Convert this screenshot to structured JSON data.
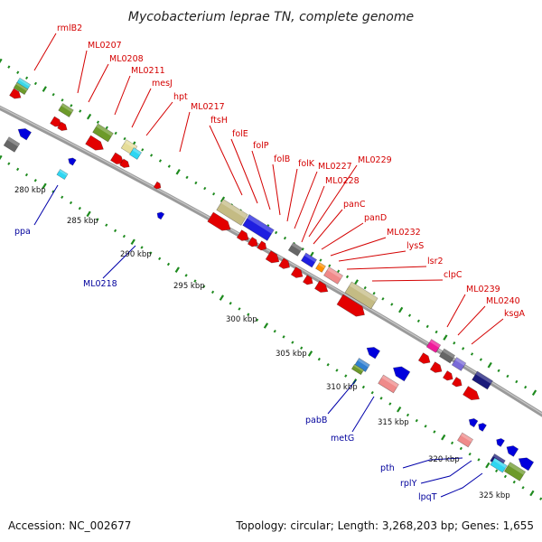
{
  "title": "Mycobacterium leprae TN, complete genome",
  "footer": {
    "accession": "Accession: NC_002677",
    "summary": "Topology: circular; Length: 3,268,203 bp; Genes: 1,655"
  },
  "colors": {
    "backbone": "#8a8a8a",
    "ticks": "#1e8a1e",
    "forward_label": "#d40000",
    "reverse_label": "#00009c"
  },
  "kbp_labels": [
    "280 kbp",
    "285 kbp",
    "290 kbp",
    "295 kbp",
    "300 kbp",
    "305 kbp",
    "310 kbp",
    "315 kbp",
    "320 kbp",
    "325 kbp"
  ],
  "forward_genes": [
    "rmlB2",
    "ML0207",
    "ML0208",
    "ML0211",
    "mesJ",
    "hpt",
    "ML0217",
    "ftsH",
    "folE",
    "folP",
    "folB",
    "folK",
    "ML0227",
    "ML0229",
    "ML0228",
    "panC",
    "panD",
    "ML0232",
    "lysS",
    "lsr2",
    "clpC",
    "ML0239",
    "ML0240",
    "ksgA"
  ],
  "reverse_genes": [
    "ppa",
    "ML0218",
    "pabB",
    "metG",
    "pth",
    "rplY",
    "lpqT"
  ]
}
